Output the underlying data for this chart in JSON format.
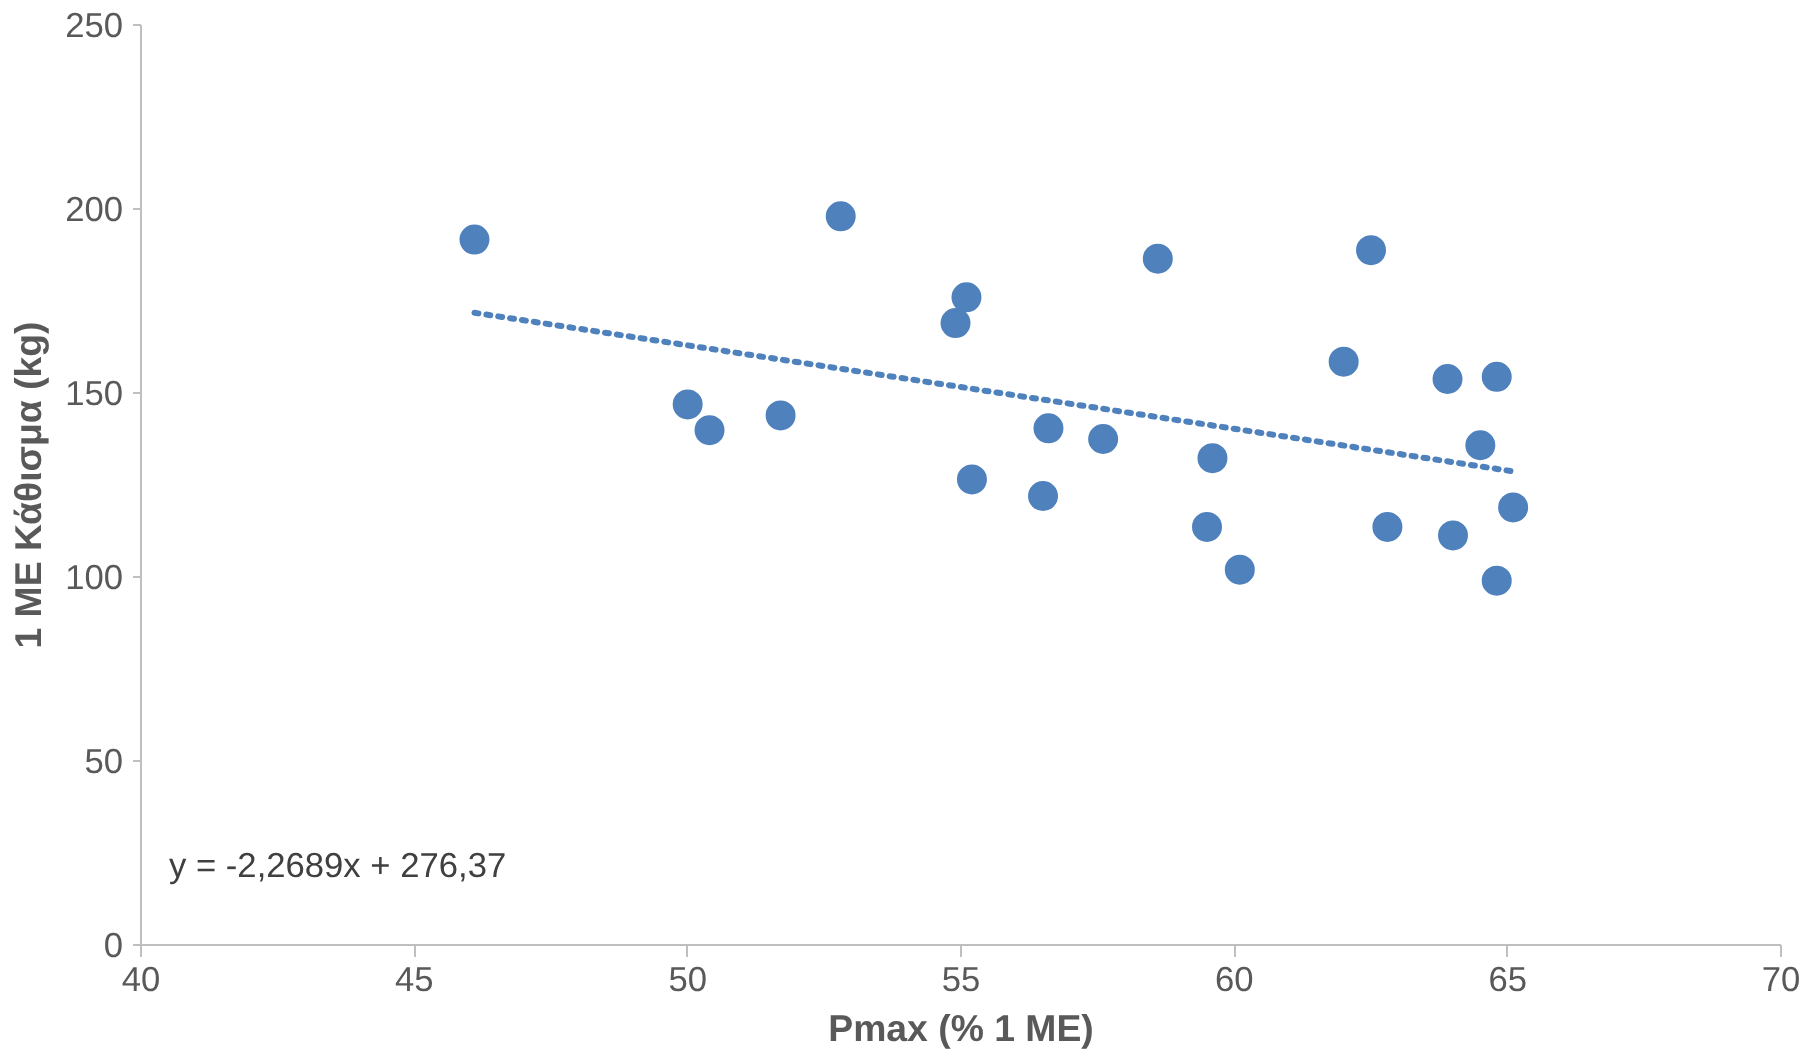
{
  "chart_data": {
    "type": "scatter",
    "xlabel": "Pmax (% 1 ME)",
    "ylabel": "1 ME Κάθισμα (kg)",
    "xlim": [
      40,
      70
    ],
    "xticks": [
      40,
      45,
      50,
      55,
      60,
      65,
      70
    ],
    "ylim": [
      0,
      250
    ],
    "yticks": [
      0,
      50,
      100,
      150,
      200,
      250
    ],
    "annotations": [
      "y = -2,2689x + 276,37"
    ],
    "series": [
      {
        "color": "#4f81bd",
        "x": [
          46.1,
          50.0,
          50.4,
          51.7,
          52.8,
          54.9,
          55.1,
          55.2,
          56.5,
          56.6,
          57.6,
          58.6,
          59.5,
          59.6,
          60.1,
          62.0,
          62.5,
          62.8,
          63.9,
          64.0,
          64.5,
          64.8,
          64.8,
          65.1
        ],
        "values": [
          191.7,
          146.9,
          139.9,
          143.9,
          198,
          169,
          176,
          126.5,
          122,
          140.4,
          137.5,
          186.5,
          113.6,
          132.3,
          102,
          158.5,
          188.8,
          113.6,
          153.8,
          111.3,
          135.8,
          154.4,
          99,
          118.9
        ]
      },
      {
        "type": "line",
        "color": "#4f81bd",
        "line_style": "dotted",
        "x": [
          46.1,
          65.1
        ],
        "values": [
          171.8,
          128.7
        ]
      }
    ]
  }
}
